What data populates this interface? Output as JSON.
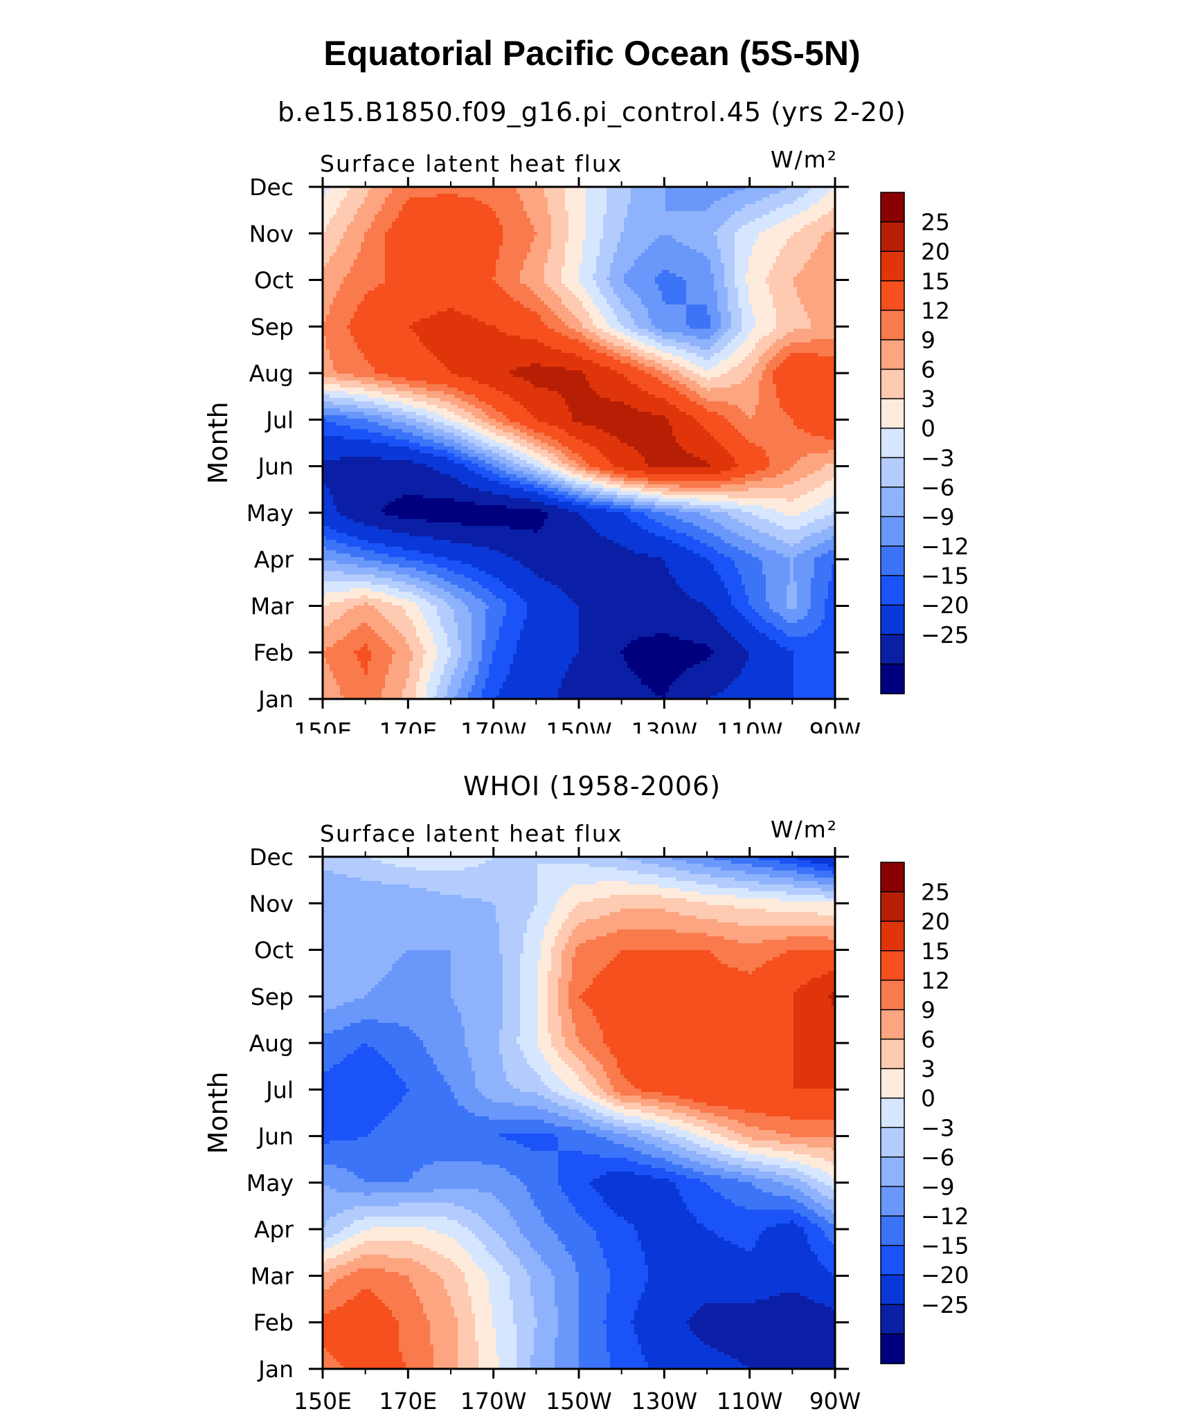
{
  "title": "Equatorial Pacific Ocean (5S-5N)",
  "colors": [
    "#00007f",
    "#0a1fa6",
    "#0a37d7",
    "#1a53f7",
    "#3c74f8",
    "#6a97fa",
    "#8eb2fb",
    "#b3ccfd",
    "#d6e6ff",
    "#ffebdc",
    "#fecab1",
    "#fca580",
    "#f97a4c",
    "#f5501e",
    "#e0350a",
    "#b71f05",
    "#8a0000"
  ],
  "chart_data": [
    {
      "type": "heatmap",
      "title": "b.e15.B1850.f09_g16.pi_control.45 (yrs 2-20)",
      "left_label": "Surface latent heat flux",
      "right_label": "W/m²",
      "ylabel": "Month",
      "xlabel": "",
      "x_ticks": [
        "150E",
        "170E",
        "170W",
        "150W",
        "130W",
        "110W",
        "90W"
      ],
      "x_values": [
        150,
        170,
        190,
        210,
        230,
        250,
        270
      ],
      "y_ticks": [
        "Jan",
        "Feb",
        "Mar",
        "Apr",
        "May",
        "Jun",
        "Jul",
        "Aug",
        "Sep",
        "Oct",
        "Nov",
        "Dec"
      ],
      "levels": [
        -25,
        -20,
        -15,
        -12,
        -9,
        -6,
        -3,
        0,
        3,
        6,
        9,
        12,
        15,
        20,
        25
      ],
      "level_labels": [
        "25",
        "20",
        "15",
        "12",
        "9",
        "6",
        "3",
        "0",
        "−3",
        "−6",
        "−9",
        "−12",
        "−15",
        "−20",
        "−25"
      ],
      "grid": [
        [
          10,
          14,
          8,
          -5,
          -15,
          -18,
          -22,
          -24,
          -25,
          -20,
          -18,
          -15,
          -12
        ],
        [
          12,
          16,
          10,
          0,
          -12,
          -18,
          -20,
          -25,
          -27,
          -26,
          -20,
          -15,
          -13
        ],
        [
          6,
          10,
          5,
          -3,
          -10,
          -16,
          -20,
          -24,
          -22,
          -20,
          -12,
          -5,
          -14
        ],
        [
          -6,
          -9,
          -12,
          -15,
          -18,
          -22,
          -24,
          -22,
          -20,
          -15,
          -10,
          -6,
          -12
        ],
        [
          -18,
          -24,
          -27,
          -28,
          -28,
          -27,
          -20,
          -15,
          -9,
          -5,
          0,
          4,
          0
        ],
        [
          -21,
          -23,
          -22,
          -18,
          -9,
          0,
          12,
          22,
          27,
          26,
          18,
          12,
          8
        ],
        [
          -12,
          -9,
          -4,
          3,
          12,
          20,
          26,
          28,
          26,
          18,
          12,
          15,
          20
        ],
        [
          11,
          14,
          18,
          20,
          24,
          27,
          26,
          20,
          12,
          4,
          9,
          20,
          18
        ],
        [
          12,
          17,
          20,
          22,
          20,
          17,
          10,
          0,
          -8,
          -10,
          2,
          8,
          10
        ],
        [
          10,
          14,
          16,
          17,
          15,
          10,
          3,
          -6,
          -10,
          -8,
          4,
          9,
          12
        ],
        [
          6,
          12,
          18,
          20,
          16,
          12,
          4,
          -3,
          -6,
          -4,
          2,
          6,
          10
        ],
        [
          2,
          8,
          14,
          14,
          14,
          10,
          4,
          -2,
          -6,
          -8,
          -6,
          -3,
          3
        ]
      ]
    },
    {
      "type": "heatmap",
      "title": "WHOI (1958-2006)",
      "left_label": "Surface latent heat flux",
      "right_label": "W/m²",
      "ylabel": "Month",
      "xlabel": "",
      "x_ticks": [
        "150E",
        "170E",
        "170W",
        "150W",
        "130W",
        "110W",
        "90W"
      ],
      "x_values": [
        150,
        170,
        190,
        210,
        230,
        250,
        270
      ],
      "y_ticks": [
        "Jan",
        "Feb",
        "Mar",
        "Apr",
        "May",
        "Jun",
        "Jul",
        "Aug",
        "Sep",
        "Oct",
        "Nov",
        "Dec"
      ],
      "levels": [
        -25,
        -20,
        -15,
        -12,
        -9,
        -6,
        -3,
        0,
        3,
        6,
        9,
        12,
        15,
        20,
        25
      ],
      "level_labels": [
        "25",
        "20",
        "15",
        "12",
        "9",
        "6",
        "3",
        "0",
        "−3",
        "−6",
        "−9",
        "−12",
        "−15",
        "−20",
        "−25"
      ],
      "grid": [
        [
          14,
          16,
          15,
          10,
          4,
          -4,
          -9,
          -13,
          -16,
          -18,
          -20,
          -25,
          -25
        ],
        [
          16,
          18,
          14,
          10,
          3,
          -3,
          -9,
          -14,
          -18,
          -22,
          -23,
          -24,
          -22
        ],
        [
          10,
          14,
          12,
          8,
          2,
          -4,
          -9,
          -13,
          -16,
          -17,
          -16,
          -18,
          -15
        ],
        [
          -3,
          3,
          4,
          2,
          -3,
          -8,
          -11,
          -14,
          -17,
          -15,
          -14,
          -17,
          -10
        ],
        [
          -6,
          -9,
          -9,
          -7,
          -7,
          -10,
          -14,
          -18,
          -16,
          -12,
          -9,
          -5,
          2
        ],
        [
          -13,
          -12,
          -10,
          -11,
          -12,
          -13,
          -11,
          -7,
          -2,
          4,
          10,
          12,
          12
        ],
        [
          -13,
          -15,
          -12,
          -9,
          -4,
          -2,
          4,
          14,
          17,
          20,
          20,
          20,
          20
        ],
        [
          -10,
          -12,
          -10,
          -7,
          -4,
          3,
          12,
          17,
          20,
          17,
          17,
          20,
          22
        ],
        [
          -4,
          -6,
          -7,
          -6,
          -5,
          3,
          15,
          17,
          20,
          17,
          17,
          20,
          26
        ],
        [
          -4,
          -5,
          -6,
          -6,
          -4,
          2,
          13,
          15,
          15,
          15,
          13,
          15,
          15
        ],
        [
          -6,
          -6,
          -6,
          -4,
          -3,
          0,
          6,
          8,
          8,
          6,
          5,
          4,
          3
        ],
        [
          -2,
          0,
          2,
          2,
          0,
          0,
          -1,
          -3,
          -6,
          -9,
          -12,
          -15,
          -20
        ]
      ]
    }
  ]
}
